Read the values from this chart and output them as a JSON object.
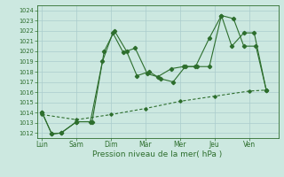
{
  "title": "",
  "xlabel": "Pression niveau de la mer( hPa )",
  "background_color": "#cce8e0",
  "grid_color": "#aacccc",
  "line_color": "#2d6e2d",
  "ylim": [
    1011.5,
    1024.5
  ],
  "xlim": [
    -0.15,
    6.85
  ],
  "x_ticks_labels": [
    "Lun",
    "Sam",
    "Dim",
    "Mar",
    "Mer",
    "Jeu",
    "Ven"
  ],
  "x_ticks_pos": [
    0,
    1,
    2,
    3,
    4,
    5,
    6
  ],
  "yticks": [
    1012,
    1013,
    1014,
    1015,
    1016,
    1017,
    1018,
    1019,
    1020,
    1021,
    1022,
    1023,
    1024
  ],
  "series1_x": [
    0.0,
    0.28,
    0.55,
    1.0,
    1.4,
    1.75,
    2.05,
    2.35,
    2.7,
    3.05,
    3.35,
    3.75,
    4.1,
    4.45,
    4.85,
    5.2,
    5.5,
    5.85,
    6.15,
    6.5
  ],
  "series1_y": [
    1014.0,
    1011.9,
    1012.0,
    1013.1,
    1013.1,
    1019.0,
    1021.8,
    1019.9,
    1020.3,
    1017.8,
    1017.5,
    1018.3,
    1018.5,
    1018.5,
    1021.3,
    1023.5,
    1020.5,
    1021.8,
    1021.8,
    1016.2
  ],
  "series2_x": [
    0.0,
    0.28,
    0.55,
    1.0,
    1.45,
    1.8,
    2.1,
    2.45,
    2.75,
    3.1,
    3.45,
    3.8,
    4.15,
    4.5,
    4.85,
    5.2,
    5.55,
    5.85,
    6.2,
    6.5
  ],
  "series2_y": [
    1014.0,
    1011.9,
    1012.0,
    1013.1,
    1013.1,
    1020.0,
    1022.0,
    1020.0,
    1017.6,
    1018.0,
    1017.3,
    1017.0,
    1018.5,
    1018.5,
    1018.5,
    1023.5,
    1023.2,
    1020.5,
    1020.5,
    1016.2
  ],
  "series3_x": [
    0.0,
    1.0,
    2.0,
    3.0,
    4.0,
    5.0,
    6.0,
    6.5
  ],
  "series3_y": [
    1013.8,
    1013.3,
    1013.8,
    1014.4,
    1015.1,
    1015.6,
    1016.1,
    1016.2
  ]
}
